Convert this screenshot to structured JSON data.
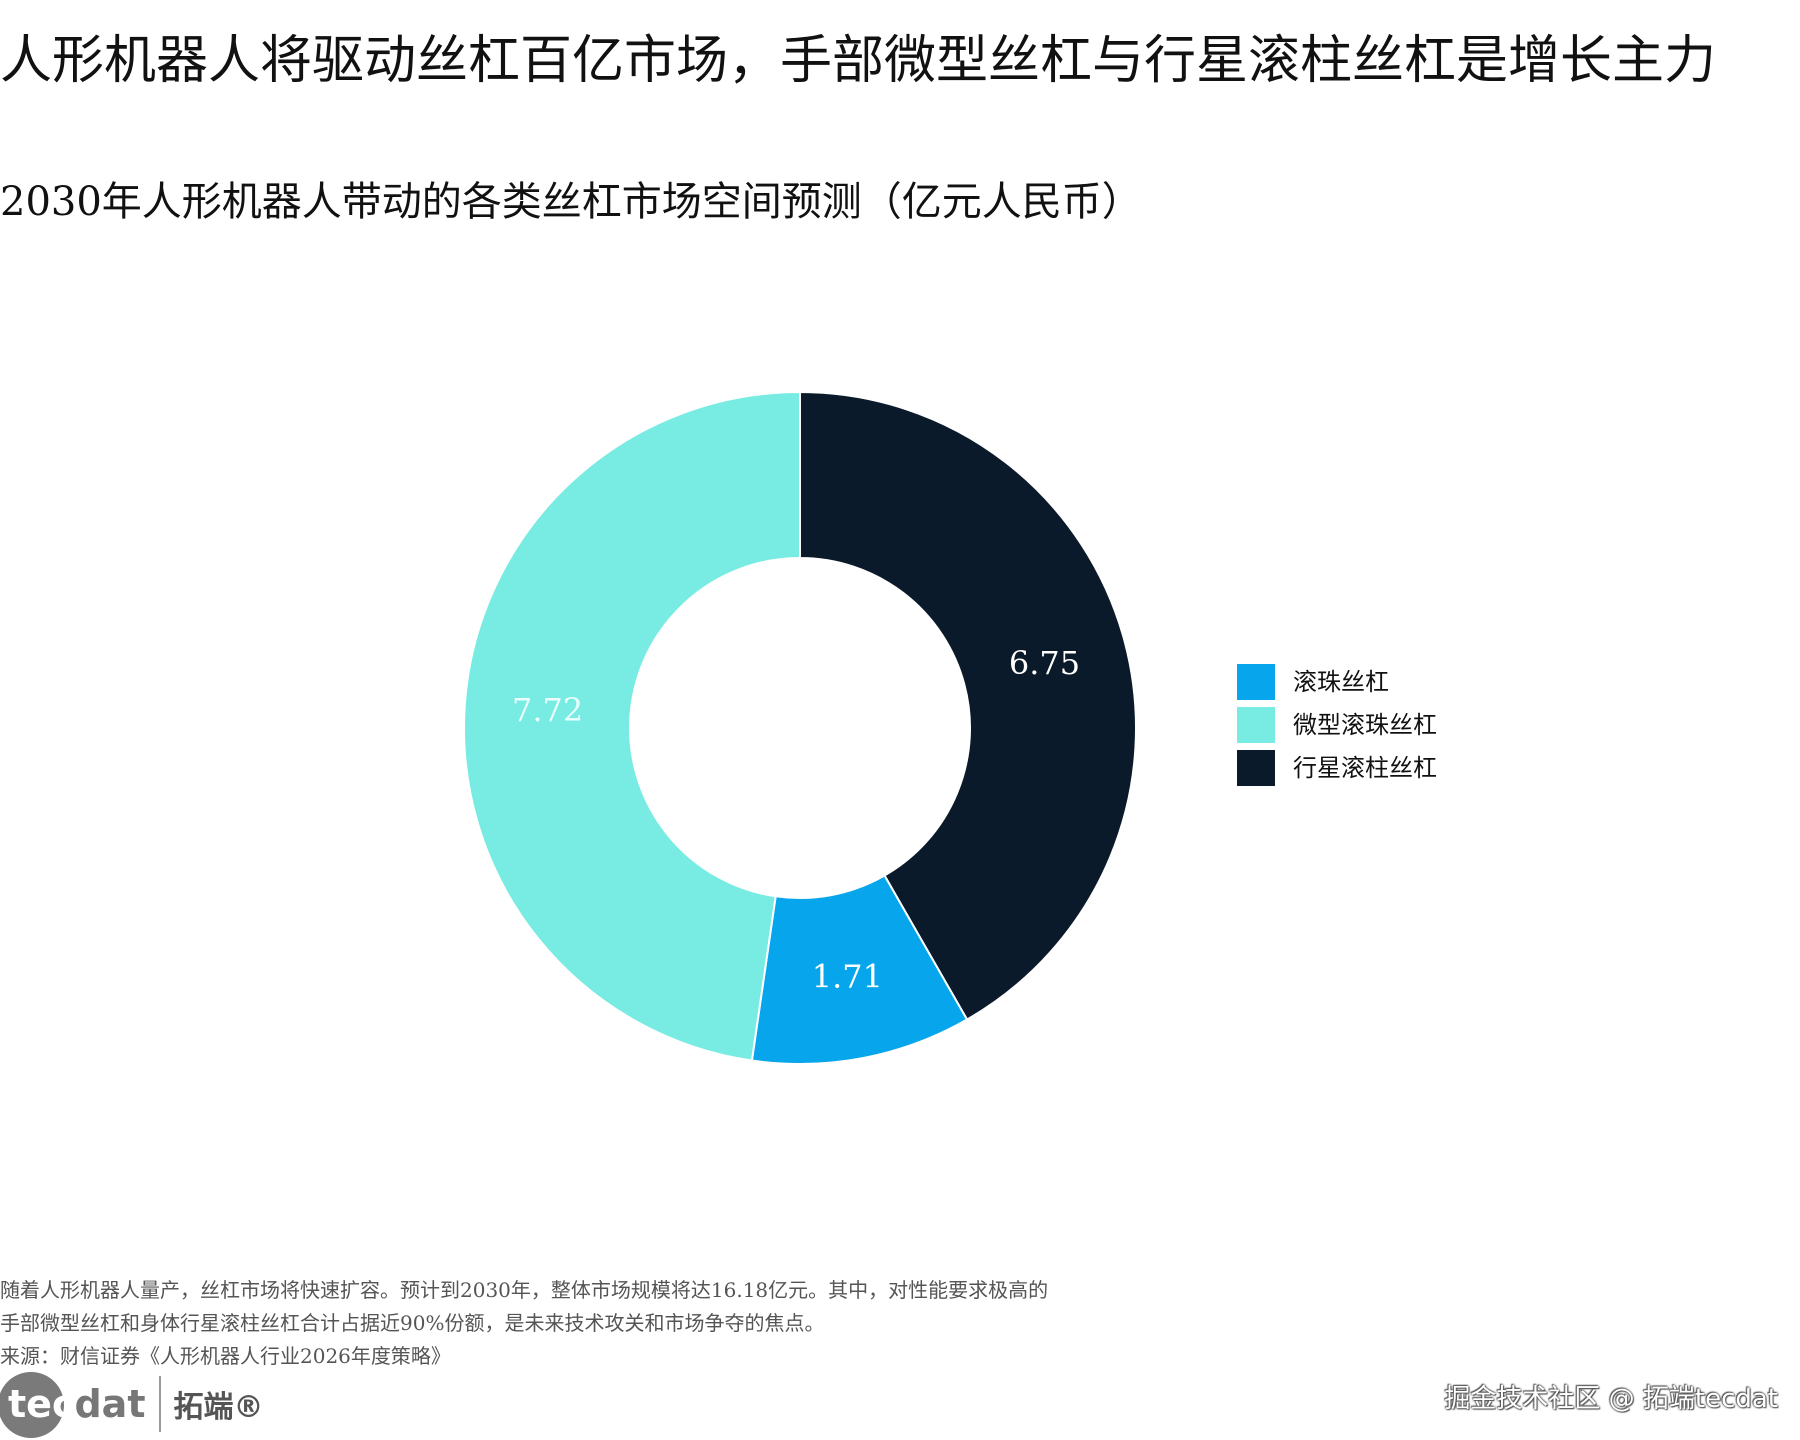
{
  "headline": "人形机器人将驱动丝杠百亿市场，手部微型丝杠与行星滚柱丝杠是增长主力",
  "chart_data": {
    "type": "donut",
    "title": "2030年人形机器人带动的各类丝杠市场空间预测（亿元人民币）",
    "series": [
      {
        "name": "滚珠丝杠",
        "value": 1.71,
        "label": "1.71",
        "color": "#06A5EC"
      },
      {
        "name": "微型滚珠丝杠",
        "value": 7.72,
        "label": "7.72",
        "color": "#78EBE2"
      },
      {
        "name": "行星滚柱丝杠",
        "value": 6.75,
        "label": "6.75",
        "color": "#0A1A2A"
      }
    ],
    "slice_order": [
      2,
      0,
      1
    ],
    "label_colors": [
      "#ffffff",
      "#eafffd",
      "#ffffff"
    ],
    "legend_position": "right"
  },
  "footnote": {
    "line1": "随着人形机器人量产，丝杠市场将快速扩容。预计到2030年，整体市场规模将达16.18亿元。其中，对性能要求极高的",
    "line2": "手部微型丝杠和身体行星滚柱丝杠合计占据近90%份额，是未来技术攻关和市场争夺的焦点。",
    "source": "来源：财信证券《人形机器人行业2026年度策略》"
  },
  "brand": {
    "logo_text_a": "tec",
    "logo_text_b": "dat",
    "name_cn": "拓端®"
  },
  "watermark": "掘金技术社区 @ 拓端tecdat"
}
